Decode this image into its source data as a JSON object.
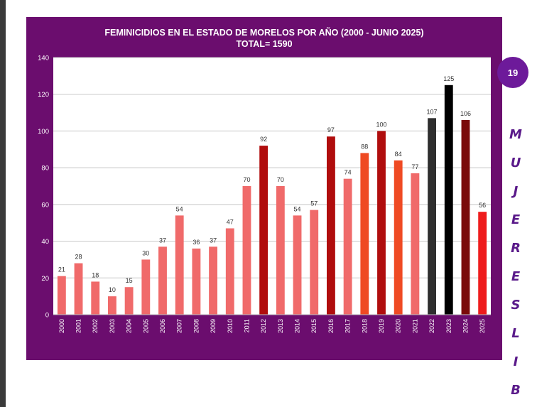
{
  "chart_data": {
    "type": "bar",
    "title": "FEMINICIDIOS EN EL ESTADO DE MORELOS POR AÑO (2000 - JUNIO 2025)",
    "subtitle": "TOTAL= 1590",
    "categories": [
      "2000",
      "2001",
      "2002",
      "2003",
      "2004",
      "2005",
      "2006",
      "2007",
      "2008",
      "2009",
      "2010",
      "2011",
      "2012",
      "2013",
      "2014",
      "2015",
      "2016",
      "2017",
      "2018",
      "2019",
      "2020",
      "2021",
      "2022",
      "2023",
      "2024",
      "2025"
    ],
    "values": [
      21,
      28,
      18,
      10,
      15,
      30,
      37,
      54,
      36,
      37,
      47,
      70,
      92,
      70,
      54,
      57,
      97,
      74,
      88,
      100,
      84,
      77,
      107,
      125,
      106,
      56
    ],
    "bar_colors": [
      "#f06a6a",
      "#f06a6a",
      "#f06a6a",
      "#f06a6a",
      "#f06a6a",
      "#f06a6a",
      "#f06a6a",
      "#f06a6a",
      "#f06a6a",
      "#f06a6a",
      "#f06a6a",
      "#f06a6a",
      "#b00d0d",
      "#f06a6a",
      "#f06a6a",
      "#f06a6a",
      "#b00d0d",
      "#f06a6a",
      "#ef4a23",
      "#b00d0d",
      "#ef4a23",
      "#f06a6a",
      "#2e2e2e",
      "#000000",
      "#7a0a0a",
      "#ee1c1c"
    ],
    "ylim": [
      0,
      140
    ],
    "yticks": [
      0,
      20,
      40,
      60,
      80,
      100,
      120,
      140
    ],
    "grid": true,
    "xlabel": "",
    "ylabel": ""
  },
  "badge": {
    "text": "19"
  },
  "side_letters": [
    "M",
    "U",
    "J",
    "E",
    "R",
    "E",
    "S",
    "L",
    "I",
    "B"
  ],
  "colors": {
    "panel": "#6b0d6e",
    "plot_bg": "#ffffff",
    "badge": "#6d1a9a",
    "side_text": "#5a1a8a"
  }
}
